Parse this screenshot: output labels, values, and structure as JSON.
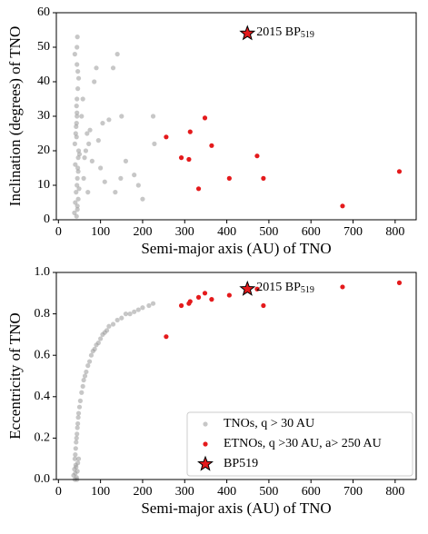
{
  "chart_data": [
    {
      "type": "scatter",
      "x_label": "Semi-major axis (AU) of TNO",
      "y_label": "Inclination (degrees) of TNO",
      "xlim": [
        -5,
        850
      ],
      "xticks": [
        0,
        100,
        200,
        300,
        400,
        500,
        600,
        700,
        800
      ],
      "ylim": [
        0,
        60
      ],
      "yticks": [
        0,
        10,
        20,
        30,
        40,
        50,
        60
      ],
      "series": [
        {
          "color": "#999999",
          "marker": "circle",
          "x": [
            38,
            40,
            42,
            44,
            45,
            46,
            47,
            48,
            39,
            41,
            43,
            44,
            45,
            47,
            49,
            42,
            43,
            44,
            46,
            48,
            39,
            44,
            45,
            47,
            40,
            43,
            55,
            60,
            65,
            70,
            75,
            80,
            85,
            90,
            95,
            100,
            105,
            110,
            120,
            130,
            140,
            150,
            160,
            180,
            190,
            200,
            225,
            228,
            43,
            44,
            45,
            46,
            58,
            62,
            68,
            72,
            135,
            148,
            44,
            50
          ],
          "values": [
            2,
            5,
            8,
            10,
            12,
            15,
            18,
            20,
            22,
            25,
            28,
            30,
            4,
            6,
            9,
            27,
            33,
            35,
            38,
            41,
            48,
            45,
            3,
            14,
            16,
            24,
            30,
            12,
            20,
            8,
            26,
            17,
            40,
            44,
            23,
            15,
            28,
            11,
            29,
            44,
            48,
            30,
            17,
            13,
            10,
            6,
            30,
            22,
            1,
            50,
            53,
            43,
            35,
            18,
            25,
            22,
            8,
            12,
            31,
            19
          ]
        },
        {
          "color": "#e41a1c",
          "marker": "circle",
          "x": [
            256,
            292,
            310,
            313,
            333,
            348,
            364,
            406,
            472,
            487,
            675,
            810
          ],
          "values": [
            24,
            18,
            17.5,
            25.5,
            9,
            29.5,
            21.5,
            12,
            18.5,
            12,
            4,
            14
          ]
        },
        {
          "color": "#e41a1c",
          "marker": "star",
          "x": [
            449
          ],
          "values": [
            54
          ]
        }
      ],
      "annotation": {
        "text": "2015 BP",
        "subscript": "519"
      }
    },
    {
      "type": "scatter",
      "x_label": "Semi-major axis (AU) of TNO",
      "y_label": "Eccentricity of TNO",
      "xlim": [
        -5,
        850
      ],
      "xticks": [
        0,
        100,
        200,
        300,
        400,
        500,
        600,
        700,
        800
      ],
      "ylim": [
        0,
        1
      ],
      "yticks": [
        {
          "value": 0,
          "label": "0.0"
        },
        0.2,
        0.4,
        0.6,
        0.8,
        {
          "value": 1,
          "label": "1.0"
        }
      ],
      "legend": "lower right",
      "series": [
        {
          "name": "TNOs, q > 30 AU",
          "color": "#999999",
          "marker": "circle",
          "x": [
            36,
            38,
            39,
            40,
            41,
            42,
            43,
            44,
            45,
            46,
            47,
            48,
            50,
            52,
            55,
            58,
            60,
            63,
            66,
            70,
            74,
            78,
            82,
            86,
            90,
            95,
            100,
            105,
            110,
            115,
            120,
            130,
            140,
            150,
            160,
            170,
            180,
            190,
            200,
            215,
            225,
            40,
            42,
            44,
            46,
            48,
            43,
            45,
            39,
            41
          ],
          "values": [
            0.02,
            0.05,
            0.1,
            0.12,
            0.15,
            0.18,
            0.2,
            0.22,
            0.25,
            0.27,
            0.3,
            0.32,
            0.35,
            0.38,
            0.42,
            0.45,
            0.48,
            0.5,
            0.52,
            0.55,
            0.57,
            0.6,
            0.62,
            0.63,
            0.65,
            0.66,
            0.68,
            0.7,
            0.71,
            0.72,
            0.74,
            0.75,
            0.77,
            0.78,
            0.8,
            0.8,
            0.81,
            0.82,
            0.83,
            0.84,
            0.85,
            0.03,
            0.06,
            0,
            0.08,
            0.1,
            0.01,
            0.04,
            0,
            0.07
          ]
        },
        {
          "name": "ETNOs, q >30 AU, a> 250 AU",
          "color": "#e41a1c",
          "marker": "circle",
          "x": [
            256,
            292,
            310,
            313,
            333,
            348,
            364,
            406,
            472,
            487,
            675,
            810
          ],
          "values": [
            0.69,
            0.84,
            0.85,
            0.86,
            0.88,
            0.9,
            0.87,
            0.89,
            0.92,
            0.84,
            0.93,
            0.95
          ]
        },
        {
          "name": "BP519",
          "color": "#e41a1c",
          "marker": "star",
          "x": [
            449
          ],
          "values": [
            0.92
          ]
        }
      ],
      "annotation": {
        "text": "2015 BP",
        "subscript": "519"
      }
    }
  ]
}
